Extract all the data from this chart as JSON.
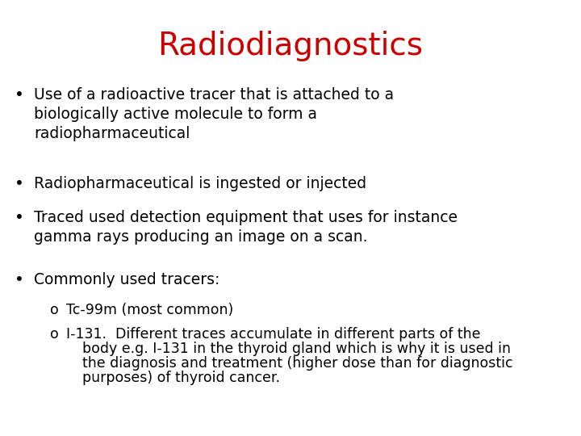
{
  "title": "Radiodiagnostics",
  "title_color": "#cc0000",
  "title_fontsize": 28,
  "background_color": "#ffffff",
  "text_color": "#000000",
  "bullet_fontsize": 13.5,
  "sub_bullet_fontsize": 12.5,
  "bullet1": "Use of a radioactive tracer that is attached to a\nbiologically active molecule to form a\nradiopharmaceutical",
  "bullet2": "Radiopharmaceutical is ingested or injected",
  "bullet3": "Traced used detection equipment that uses for instance\ngamma rays producing an image on a scan.",
  "bullet4": "Commonly used tracers:",
  "sub1": "Tc-99m (most common)",
  "sub2_line1": "I-131.  Different traces accumulate in different parts of the",
  "sub2_line2": "body e.g. I-131 in the thyroid gland which is why it is used in",
  "sub2_line3": "the diagnosis and treatment (higher dose than for diagnostic",
  "sub2_line4": "purposes) of thyroid cancer."
}
